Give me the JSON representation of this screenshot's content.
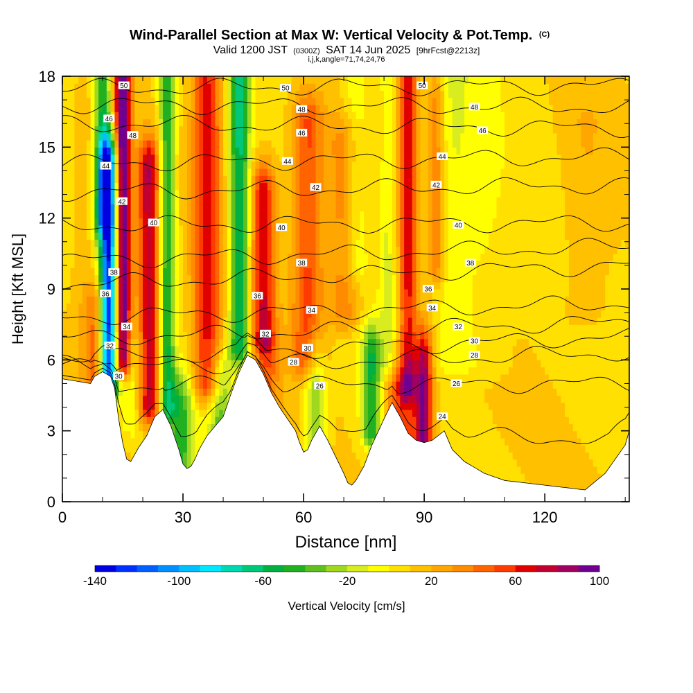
{
  "header": {
    "title": "Wind-Parallel Section at Max W: Vertical Velocity & Pot.Temp.",
    "title_mark": "(C)",
    "valid_prefix": "Valid 1200 JST",
    "valid_utc": "(0300Z)",
    "valid_date": "SAT 14 Jun 2025",
    "forecast": "[9hrFcst@2213z]",
    "section_params": "i,j,k,angle=71,74,24,76"
  },
  "chart_data": {
    "type": "heatmap",
    "xlabel": "Distance [nm]",
    "ylabel": "Height [Kft MSL]",
    "xlim": [
      0,
      141
    ],
    "ylim": [
      0,
      18
    ],
    "x_ticks": [
      0,
      30,
      60,
      90,
      120
    ],
    "y_ticks": [
      0,
      3,
      6,
      9,
      12,
      15,
      18
    ],
    "grid": false,
    "colorbar": {
      "label": "Vertical Velocity [cm/s]",
      "range": [
        -140,
        100
      ],
      "step": 10,
      "tick_values": [
        -140,
        -100,
        -60,
        -20,
        20,
        60,
        100
      ],
      "colors": [
        "#0000e0",
        "#0030ff",
        "#0060ff",
        "#0090ff",
        "#00c0ff",
        "#00e8ff",
        "#00d8b0",
        "#00c878",
        "#00b040",
        "#20b020",
        "#60c020",
        "#a0d820",
        "#d8ec20",
        "#ffff00",
        "#ffe000",
        "#ffc000",
        "#ffa600",
        "#ff8c00",
        "#ff6400",
        "#ff3c00",
        "#e00000",
        "#c00030",
        "#a00060",
        "#700090"
      ]
    },
    "terrain_kft": {
      "x": [
        0,
        7,
        8,
        10,
        12,
        13,
        14,
        15,
        16,
        17,
        18,
        19,
        21,
        23,
        25,
        27,
        29,
        30,
        31,
        32,
        33,
        34,
        36,
        38,
        40,
        42,
        44,
        46,
        48,
        50,
        52,
        54,
        56,
        58,
        59,
        60,
        61,
        62,
        64,
        66,
        68,
        70,
        71,
        72,
        73,
        75,
        77,
        80,
        82,
        84,
        86,
        88,
        90,
        92,
        95,
        97,
        100,
        105,
        110,
        115,
        120,
        125,
        130,
        135,
        140,
        141
      ],
      "z": [
        5.2,
        5.0,
        5.3,
        5.5,
        5.3,
        4.8,
        3.5,
        2.5,
        1.8,
        1.7,
        2.0,
        2.3,
        2.8,
        3.6,
        3.9,
        3.2,
        2.2,
        1.6,
        1.4,
        1.5,
        1.8,
        2.2,
        2.8,
        3.2,
        3.6,
        4.6,
        5.5,
        6.2,
        6.0,
        5.4,
        4.6,
        4.0,
        3.5,
        3.0,
        2.5,
        2.1,
        2.2,
        2.6,
        3.2,
        2.6,
        1.9,
        1.2,
        0.8,
        0.7,
        0.9,
        1.5,
        2.4,
        3.5,
        4.2,
        3.6,
        2.9,
        2.6,
        2.5,
        2.6,
        3.0,
        2.2,
        1.7,
        1.2,
        0.9,
        0.8,
        0.7,
        0.6,
        0.5,
        1.2,
        2.4,
        3.0
      ]
    },
    "vertical_velocity_features": [
      {
        "x": 5.0,
        "width_nm": 2.5,
        "z_bottom": 4.0,
        "z_top": 16.0,
        "max_cm_s": 10
      },
      {
        "x": 8.5,
        "width_nm": 2.5,
        "z_bottom": 5.0,
        "z_top": 8.0,
        "max_cm_s": 40
      },
      {
        "x": 11.5,
        "width_nm": 2.2,
        "z_bottom": 5.0,
        "z_top": 14.0,
        "max_cm_s": -140
      },
      {
        "x": 10.0,
        "width_nm": 2.0,
        "z_bottom": 12.0,
        "z_top": 18.0,
        "max_cm_s": -60
      },
      {
        "x": 15.0,
        "width_nm": 2.0,
        "z_bottom": 6.0,
        "z_top": 18.0,
        "max_cm_s": 100
      },
      {
        "x": 17.5,
        "width_nm": 3.0,
        "z_bottom": 3.5,
        "z_top": 6.0,
        "max_cm_s": -20
      },
      {
        "x": 21.5,
        "width_nm": 2.8,
        "z_bottom": 4.0,
        "z_top": 14.0,
        "max_cm_s": 70
      },
      {
        "x": 26.0,
        "width_nm": 2.0,
        "z_bottom": 4.0,
        "z_top": 18.0,
        "max_cm_s": -60
      },
      {
        "x": 29.5,
        "width_nm": 3.0,
        "z_bottom": 1.5,
        "z_top": 4.0,
        "max_cm_s": -50
      },
      {
        "x": 36.0,
        "width_nm": 3.5,
        "z_bottom": 5.0,
        "z_top": 18.0,
        "max_cm_s": 55
      },
      {
        "x": 39.5,
        "width_nm": 3.0,
        "z_bottom": 2.5,
        "z_top": 5.0,
        "max_cm_s": -40
      },
      {
        "x": 44.0,
        "width_nm": 2.5,
        "z_bottom": 6.5,
        "z_top": 18.0,
        "max_cm_s": -70
      },
      {
        "x": 50.0,
        "width_nm": 3.0,
        "z_bottom": 7.0,
        "z_top": 13.0,
        "max_cm_s": 60
      },
      {
        "x": 51.0,
        "width_nm": 3.0,
        "z_bottom": 3.0,
        "z_top": 5.5,
        "max_cm_s": 35
      },
      {
        "x": 61.0,
        "width_nm": 4.0,
        "z_bottom": 6.0,
        "z_top": 16.0,
        "max_cm_s": 45
      },
      {
        "x": 63.0,
        "width_nm": 2.5,
        "z_bottom": 2.5,
        "z_top": 5.5,
        "max_cm_s": -40
      },
      {
        "x": 70.0,
        "width_nm": 4.0,
        "z_bottom": 8.0,
        "z_top": 15.0,
        "max_cm_s": 30
      },
      {
        "x": 77.0,
        "width_nm": 2.5,
        "z_bottom": 3.0,
        "z_top": 6.0,
        "max_cm_s": -60
      },
      {
        "x": 73.0,
        "width_nm": 3.0,
        "z_bottom": 10.0,
        "z_top": 18.0,
        "max_cm_s": -20
      },
      {
        "x": 86.0,
        "width_nm": 2.2,
        "z_bottom": 5.0,
        "z_top": 18.0,
        "max_cm_s": 55
      },
      {
        "x": 85.0,
        "width_nm": 5.0,
        "z_bottom": 2.8,
        "z_top": 4.5,
        "max_cm_s": 50
      },
      {
        "x": 90.0,
        "width_nm": 2.0,
        "z_bottom": 2.5,
        "z_top": 6.0,
        "max_cm_s": 70
      },
      {
        "x": 81.0,
        "width_nm": 2.0,
        "z_bottom": 6.0,
        "z_top": 18.0,
        "max_cm_s": -20
      },
      {
        "x": 93.0,
        "width_nm": 2.0,
        "z_bottom": 10.0,
        "z_top": 17.0,
        "max_cm_s": 30
      },
      {
        "x": 97.0,
        "width_nm": 4.0,
        "z_bottom": 6.0,
        "z_top": 18.0,
        "max_cm_s": -15
      },
      {
        "x": 104.0,
        "width_nm": 6.0,
        "z_bottom": 6.0,
        "z_top": 18.0,
        "max_cm_s": -10
      },
      {
        "x": 130.0,
        "width_nm": 6.0,
        "z_bottom": 8.0,
        "z_top": 16.0,
        "max_cm_s": 10
      }
    ],
    "potential_temperature_contours": [
      {
        "value": 24,
        "z_left": 3.3,
        "z_right": 2.6
      },
      {
        "value": 26,
        "z_left": 4.9,
        "z_right": 5.0
      },
      {
        "value": 28,
        "z_left": 5.6,
        "z_right": 6.3
      },
      {
        "value": 30,
        "z_left": 6.0,
        "z_right": 7.0
      },
      {
        "value": 32,
        "z_left": 6.9,
        "z_right": 7.6
      },
      {
        "value": 34,
        "z_left": 7.8,
        "z_right": 8.4
      },
      {
        "value": 36,
        "z_left": 9.2,
        "z_right": 10.0
      },
      {
        "value": 38,
        "z_left": 10.2,
        "z_right": 10.8
      },
      {
        "value": 40,
        "z_left": 11.7,
        "z_right": 11.8
      },
      {
        "value": 42,
        "z_left": 13.1,
        "z_right": 13.4
      },
      {
        "value": 44,
        "z_left": 14.3,
        "z_right": 14.6
      },
      {
        "value": 46,
        "z_left": 16.0,
        "z_right": 15.8
      },
      {
        "value": 48,
        "z_left": 16.8,
        "z_right": 16.7
      },
      {
        "value": 50,
        "z_left": 17.5,
        "z_right": 17.6
      }
    ],
    "contour_labels": [
      {
        "text": "50",
        "x": 15.3,
        "z": 17.6
      },
      {
        "text": "46",
        "x": 11.6,
        "z": 16.2
      },
      {
        "text": "48",
        "x": 17.5,
        "z": 15.5
      },
      {
        "text": "44",
        "x": 10.8,
        "z": 14.2
      },
      {
        "text": "42",
        "x": 14.8,
        "z": 12.7
      },
      {
        "text": "40",
        "x": 22.7,
        "z": 11.8
      },
      {
        "text": "38",
        "x": 12.8,
        "z": 9.7
      },
      {
        "text": "36",
        "x": 10.7,
        "z": 8.8
      },
      {
        "text": "34",
        "x": 16.0,
        "z": 7.4
      },
      {
        "text": "32",
        "x": 11.8,
        "z": 6.6
      },
      {
        "text": "30",
        "x": 14.0,
        "z": 5.3
      },
      {
        "text": "50",
        "x": 55.5,
        "z": 17.5
      },
      {
        "text": "48",
        "x": 59.5,
        "z": 16.6
      },
      {
        "text": "46",
        "x": 59.5,
        "z": 15.6
      },
      {
        "text": "44",
        "x": 56.0,
        "z": 14.4
      },
      {
        "text": "42",
        "x": 63.0,
        "z": 13.3
      },
      {
        "text": "40",
        "x": 54.5,
        "z": 11.6
      },
      {
        "text": "38",
        "x": 59.5,
        "z": 10.1
      },
      {
        "text": "36",
        "x": 48.5,
        "z": 8.7
      },
      {
        "text": "34",
        "x": 62.0,
        "z": 8.1
      },
      {
        "text": "32",
        "x": 50.5,
        "z": 7.1
      },
      {
        "text": "30",
        "x": 61.0,
        "z": 6.5
      },
      {
        "text": "28",
        "x": 57.5,
        "z": 5.9
      },
      {
        "text": "26",
        "x": 64.0,
        "z": 4.9
      },
      {
        "text": "50",
        "x": 89.5,
        "z": 17.6
      },
      {
        "text": "48",
        "x": 102.5,
        "z": 16.7
      },
      {
        "text": "46",
        "x": 104.5,
        "z": 15.7
      },
      {
        "text": "44",
        "x": 94.5,
        "z": 14.6
      },
      {
        "text": "42",
        "x": 93.0,
        "z": 13.4
      },
      {
        "text": "40",
        "x": 98.5,
        "z": 11.7
      },
      {
        "text": "38",
        "x": 101.5,
        "z": 10.1
      },
      {
        "text": "36",
        "x": 91.0,
        "z": 9.0
      },
      {
        "text": "34",
        "x": 92.0,
        "z": 8.2
      },
      {
        "text": "32",
        "x": 98.5,
        "z": 7.4
      },
      {
        "text": "30",
        "x": 102.5,
        "z": 6.8
      },
      {
        "text": "28",
        "x": 102.5,
        "z": 6.2
      },
      {
        "text": "26",
        "x": 98.0,
        "z": 5.0
      },
      {
        "text": "24",
        "x": 94.5,
        "z": 3.6
      }
    ]
  }
}
